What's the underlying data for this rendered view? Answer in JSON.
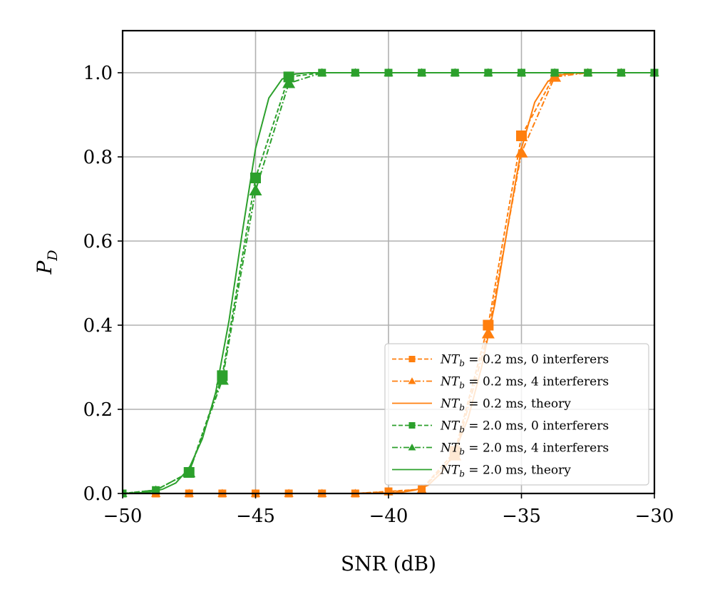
{
  "chart_data": {
    "type": "line",
    "title": "",
    "xlabel": "SNR (dB)",
    "ylabel": "P",
    "ylabel_sub": "D",
    "xlim": [
      -50,
      -30
    ],
    "ylim": [
      0,
      1.1
    ],
    "xticks": [
      -50,
      -45,
      -40,
      -35,
      -30
    ],
    "xtick_labels": [
      "−50",
      "−45",
      "−40",
      "−35",
      "−30"
    ],
    "yticks": [
      0.0,
      0.2,
      0.4,
      0.6,
      0.8,
      1.0
    ],
    "ytick_labels": [
      "0.0",
      "0.2",
      "0.4",
      "0.6",
      "0.8",
      "1.0"
    ],
    "grid": true,
    "legend_position": "lower-right",
    "colors": {
      "orange": "#ff7f0e",
      "green": "#2ca02c"
    },
    "series": [
      {
        "name": "NT_b = 0.2 ms, 0 interferers",
        "legend": {
          "v1": "NT",
          "sub": "b",
          "rest": " = 0.2 ms, 0 interferers"
        },
        "color": "#ff7f0e",
        "dash": "dashed",
        "marker": "square",
        "x": [
          -50,
          -48.75,
          -47.5,
          -46.25,
          -45,
          -43.75,
          -42.5,
          -41.25,
          -40,
          -38.75,
          -37.5,
          -36.25,
          -35,
          -33.75,
          -32.5,
          -31.25,
          -30
        ],
        "values": [
          0,
          0,
          0,
          0,
          0,
          0,
          0,
          0,
          0.005,
          0.01,
          0.1,
          0.4,
          0.85,
          0.995,
          1.0,
          1.0,
          1.0
        ]
      },
      {
        "name": "NT_b = 0.2 ms, 4 interferers",
        "legend": {
          "v1": "NT",
          "sub": "b",
          "rest": " = 0.2 ms, 4 interferers"
        },
        "color": "#ff7f0e",
        "dash": "dashdot",
        "marker": "triangle",
        "x": [
          -50,
          -48.75,
          -47.5,
          -46.25,
          -45,
          -43.75,
          -42.5,
          -41.25,
          -40,
          -38.75,
          -37.5,
          -36.25,
          -35,
          -33.75,
          -32.5,
          -31.25,
          -30
        ],
        "values": [
          0,
          0,
          0,
          0,
          0,
          0,
          0,
          0,
          0.004,
          0.01,
          0.09,
          0.38,
          0.81,
          0.99,
          1.0,
          1.0,
          1.0
        ]
      },
      {
        "name": "NT_b = 0.2 ms, theory",
        "legend": {
          "v1": "NT",
          "sub": "b",
          "rest": " = 0.2 ms, theory"
        },
        "color": "#ff7f0e",
        "dash": "solid",
        "marker": "none",
        "x": [
          -50,
          -41,
          -40,
          -39.5,
          -39,
          -38.5,
          -38,
          -37.5,
          -37,
          -36.5,
          -36,
          -35.5,
          -35,
          -34.5,
          -34,
          -33.5,
          -33,
          -32,
          -30
        ],
        "values": [
          0,
          0,
          0.001,
          0.003,
          0.008,
          0.02,
          0.05,
          0.1,
          0.18,
          0.3,
          0.45,
          0.64,
          0.82,
          0.93,
          0.98,
          0.995,
          1.0,
          1.0,
          1.0
        ]
      },
      {
        "name": "NT_b = 2.0 ms, 0 interferers",
        "legend": {
          "v1": "NT",
          "sub": "b",
          "rest": " = 2.0 ms, 0 interferers"
        },
        "color": "#2ca02c",
        "dash": "dashed",
        "marker": "square",
        "x": [
          -50,
          -48.75,
          -47.5,
          -46.25,
          -45,
          -43.75,
          -42.5,
          -41.25,
          -40,
          -38.75,
          -37.5,
          -36.25,
          -35,
          -33.75,
          -32.5,
          -31.25,
          -30
        ],
        "values": [
          0,
          0.008,
          0.05,
          0.28,
          0.75,
          0.99,
          1.0,
          1.0,
          1.0,
          1.0,
          1.0,
          1.0,
          1.0,
          1.0,
          1.0,
          1.0,
          1.0
        ]
      },
      {
        "name": "NT_b = 2.0 ms, 4 interferers",
        "legend": {
          "v1": "NT",
          "sub": "b",
          "rest": " = 2.0 ms, 4 interferers"
        },
        "color": "#2ca02c",
        "dash": "dashdot",
        "marker": "triangle",
        "x": [
          -50,
          -48.75,
          -47.5,
          -46.25,
          -45,
          -43.75,
          -42.5,
          -41.25,
          -40,
          -38.75,
          -37.5,
          -36.25,
          -35,
          -33.75,
          -32.5,
          -31.25,
          -30
        ],
        "values": [
          0,
          0.008,
          0.05,
          0.27,
          0.72,
          0.975,
          1.0,
          1.0,
          1.0,
          1.0,
          1.0,
          1.0,
          1.0,
          1.0,
          1.0,
          1.0,
          1.0
        ]
      },
      {
        "name": "NT_b = 2.0 ms, theory",
        "legend": {
          "v1": "NT",
          "sub": "b",
          "rest": " = 2.0 ms, theory"
        },
        "color": "#2ca02c",
        "dash": "solid",
        "marker": "none",
        "x": [
          -50,
          -49,
          -48.5,
          -48,
          -47.5,
          -47,
          -46.5,
          -46,
          -45.5,
          -45,
          -44.5,
          -44,
          -43.5,
          -43,
          -42,
          -30
        ],
        "values": [
          0,
          0.003,
          0.01,
          0.025,
          0.06,
          0.13,
          0.24,
          0.41,
          0.62,
          0.82,
          0.94,
          0.985,
          0.997,
          1.0,
          1.0,
          1.0
        ]
      }
    ]
  }
}
